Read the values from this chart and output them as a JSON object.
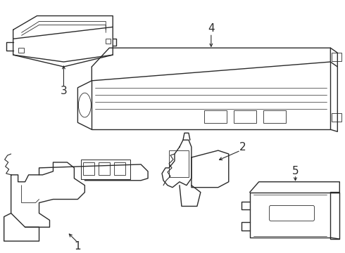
{
  "background_color": "#ffffff",
  "line_color": "#2a2a2a",
  "lw": 1.0,
  "fig_width": 4.9,
  "fig_height": 3.6,
  "dpi": 100
}
